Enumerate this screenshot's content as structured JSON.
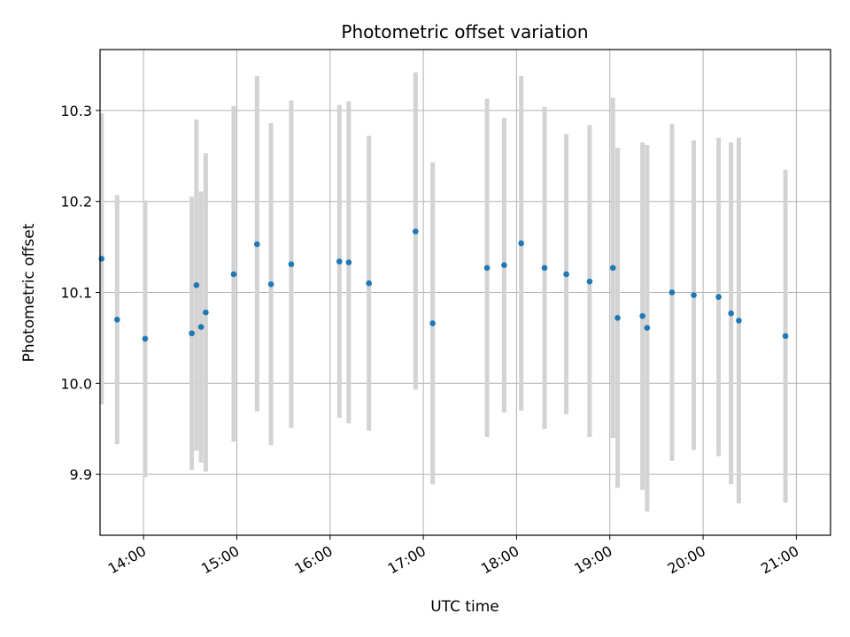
{
  "chart_data": {
    "type": "scatter",
    "title": "Photometric offset variation",
    "xlabel": "UTC time",
    "ylabel": "Photometric offset",
    "x_ticks": [
      "14:00",
      "15:00",
      "16:00",
      "17:00",
      "18:00",
      "19:00",
      "20:00",
      "21:00"
    ],
    "y_ticks": [
      "9.9",
      "10.0",
      "10.1",
      "10.2",
      "10.3"
    ],
    "xlim": [
      "13:32",
      "21:22"
    ],
    "ylim": [
      9.833,
      10.367
    ],
    "grid": true,
    "colors": {
      "point": "#1f77b4",
      "errorbar": "#d3d3d3",
      "grid": "#b0b0b0"
    },
    "points": [
      {
        "x": "13:33",
        "y": 10.137,
        "yerr_low": 9.977,
        "yerr_high": 10.297
      },
      {
        "x": "13:43",
        "y": 10.07,
        "yerr_low": 9.933,
        "yerr_high": 10.207
      },
      {
        "x": "14:01",
        "y": 10.049,
        "yerr_low": 9.897,
        "yerr_high": 10.201
      },
      {
        "x": "14:31",
        "y": 10.055,
        "yerr_low": 9.905,
        "yerr_high": 10.205
      },
      {
        "x": "14:34",
        "y": 10.108,
        "yerr_low": 9.926,
        "yerr_high": 10.29
      },
      {
        "x": "14:37",
        "y": 10.062,
        "yerr_low": 9.913,
        "yerr_high": 10.211
      },
      {
        "x": "14:40",
        "y": 10.078,
        "yerr_low": 9.903,
        "yerr_high": 10.253
      },
      {
        "x": "14:58",
        "y": 10.12,
        "yerr_low": 9.936,
        "yerr_high": 10.305
      },
      {
        "x": "15:13",
        "y": 10.153,
        "yerr_low": 9.969,
        "yerr_high": 10.338
      },
      {
        "x": "15:22",
        "y": 10.109,
        "yerr_low": 9.932,
        "yerr_high": 10.286
      },
      {
        "x": "15:35",
        "y": 10.131,
        "yerr_low": 9.951,
        "yerr_high": 10.311
      },
      {
        "x": "16:06",
        "y": 10.134,
        "yerr_low": 9.962,
        "yerr_high": 10.306
      },
      {
        "x": "16:12",
        "y": 10.133,
        "yerr_low": 9.956,
        "yerr_high": 10.31
      },
      {
        "x": "16:25",
        "y": 10.11,
        "yerr_low": 9.948,
        "yerr_high": 10.272
      },
      {
        "x": "16:55",
        "y": 10.167,
        "yerr_low": 9.993,
        "yerr_high": 10.342
      },
      {
        "x": "17:06",
        "y": 10.066,
        "yerr_low": 9.889,
        "yerr_high": 10.243
      },
      {
        "x": "17:41",
        "y": 10.127,
        "yerr_low": 9.941,
        "yerr_high": 10.313
      },
      {
        "x": "17:52",
        "y": 10.13,
        "yerr_low": 9.968,
        "yerr_high": 10.292
      },
      {
        "x": "18:03",
        "y": 10.154,
        "yerr_low": 9.97,
        "yerr_high": 10.338
      },
      {
        "x": "18:18",
        "y": 10.127,
        "yerr_low": 9.95,
        "yerr_high": 10.304
      },
      {
        "x": "18:32",
        "y": 10.12,
        "yerr_low": 9.966,
        "yerr_high": 10.274
      },
      {
        "x": "18:47",
        "y": 10.112,
        "yerr_low": 9.941,
        "yerr_high": 10.284
      },
      {
        "x": "19:02",
        "y": 10.127,
        "yerr_low": 9.94,
        "yerr_high": 10.314
      },
      {
        "x": "19:05",
        "y": 10.072,
        "yerr_low": 9.885,
        "yerr_high": 10.259
      },
      {
        "x": "19:21",
        "y": 10.074,
        "yerr_low": 9.883,
        "yerr_high": 10.265
      },
      {
        "x": "19:24",
        "y": 10.061,
        "yerr_low": 9.859,
        "yerr_high": 10.262
      },
      {
        "x": "19:40",
        "y": 10.1,
        "yerr_low": 9.915,
        "yerr_high": 10.285
      },
      {
        "x": "19:54",
        "y": 10.097,
        "yerr_low": 9.927,
        "yerr_high": 10.267
      },
      {
        "x": "20:10",
        "y": 10.095,
        "yerr_low": 9.92,
        "yerr_high": 10.27
      },
      {
        "x": "20:18",
        "y": 10.077,
        "yerr_low": 9.889,
        "yerr_high": 10.265
      },
      {
        "x": "20:23",
        "y": 10.069,
        "yerr_low": 9.868,
        "yerr_high": 10.27
      },
      {
        "x": "20:53",
        "y": 10.052,
        "yerr_low": 9.869,
        "yerr_high": 10.235
      }
    ]
  }
}
